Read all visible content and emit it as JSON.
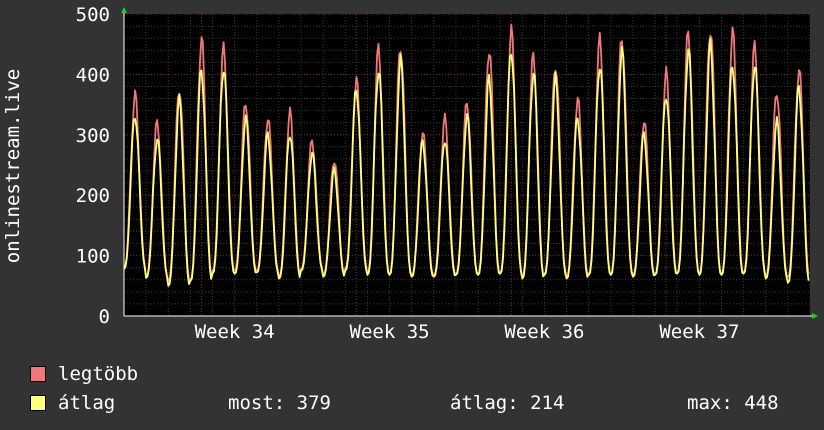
{
  "chart_data": {
    "type": "line",
    "ylabel": "onlinestream.live",
    "yticks": [
      0,
      100,
      200,
      300,
      400,
      500
    ],
    "ylim": [
      0,
      500
    ],
    "xlim": [
      0,
      31
    ],
    "x_tick_labels": [
      {
        "label": "Week 34",
        "x": 5
      },
      {
        "label": "Week 35",
        "x": 12
      },
      {
        "label": "Week 36",
        "x": 19
      },
      {
        "label": "Week 37",
        "x": 26
      }
    ],
    "grid": true,
    "series": [
      {
        "name": "legtöbb",
        "color": "#f07878",
        "daily_peaks": [
          365,
          320,
          380,
          460,
          440,
          355,
          330,
          335,
          290,
          260,
          390,
          440,
          450,
          305,
          325,
          355,
          445,
          470,
          430,
          420,
          360,
          455,
          465,
          325,
          400,
          470,
          480,
          470,
          445,
          375,
          410
        ],
        "daily_mins": [
          80,
          65,
          58,
          60,
          75,
          75,
          75,
          65,
          78,
          68,
          80,
          70,
          70,
          68,
          68,
          70,
          70,
          72,
          65,
          70,
          65,
          70,
          70,
          68,
          70,
          72,
          70,
          70,
          72,
          65,
          65
        ]
      },
      {
        "name": "átlag",
        "color": "#ffff80",
        "daily_peaks": [
          335,
          295,
          355,
          410,
          415,
          325,
          300,
          305,
          270,
          240,
          380,
          410,
          420,
          290,
          295,
          330,
          390,
          445,
          405,
          390,
          330,
          420,
          435,
          300,
          370,
          440,
          445,
          420,
          420,
          320,
          380
        ],
        "daily_mins": [
          78,
          63,
          50,
          58,
          70,
          70,
          72,
          62,
          75,
          65,
          75,
          68,
          68,
          65,
          65,
          68,
          68,
          70,
          62,
          68,
          62,
          68,
          68,
          65,
          68,
          70,
          68,
          68,
          70,
          62,
          55
        ]
      }
    ]
  },
  "legend": {
    "max_label": "legtöbb",
    "avg_label": "átlag",
    "now_text": "most: 379",
    "avg_text": "átlag: 214",
    "max_text": "max: 448",
    "max_color": "#f07878",
    "avg_color": "#ffff80"
  }
}
